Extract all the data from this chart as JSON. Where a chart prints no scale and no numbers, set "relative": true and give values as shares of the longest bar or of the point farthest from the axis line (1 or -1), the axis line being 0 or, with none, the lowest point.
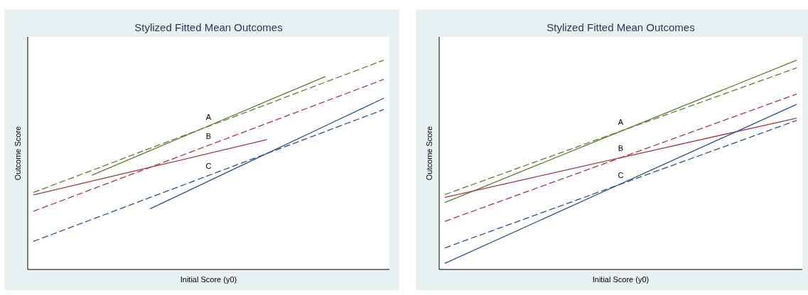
{
  "chart_data": [
    {
      "type": "line",
      "title": "Stylized Fitted Mean Outcomes",
      "xlabel": "Initial Score (y0)",
      "ylabel": "Outcome Score",
      "relative": true,
      "grid": false,
      "marker": "none",
      "categories": [
        null,
        null,
        null,
        null,
        null,
        null,
        null
      ],
      "series": [
        {
          "color": "#5f7f2f",
          "line_style": "dashed",
          "values": [
            0.368,
            0.473,
            0.579,
            0.684,
            0.789,
            0.895,
            1.0
          ]
        },
        {
          "color": "#5f7f2f",
          "line_style": "solid",
          "values": [
            null,
            0.45,
            0.568,
            0.686,
            0.804,
            0.922,
            null
          ]
        },
        {
          "color": "#a33a45",
          "line_style": "dashed",
          "values": [
            0.278,
            0.383,
            0.488,
            0.593,
            0.698,
            0.803,
            0.908
          ]
        },
        {
          "color": "#a33a45",
          "line_style": "solid",
          "values": [
            0.356,
            0.422,
            0.488,
            0.554,
            0.62,
            null,
            null
          ]
        },
        {
          "color": "#2c5387",
          "line_style": "dashed",
          "values": [
            0.134,
            0.239,
            0.344,
            0.449,
            0.554,
            0.659,
            0.764
          ]
        },
        {
          "color": "#2c5387",
          "line_style": "solid",
          "values": [
            null,
            null,
            0.29,
            0.422,
            0.554,
            0.686,
            0.818
          ]
        }
      ],
      "annotations": [
        "A",
        "B",
        "C"
      ]
    },
    {
      "type": "line",
      "title": "Stylized Fitted Mean Outcomes",
      "xlabel": "Initial Score (y0)",
      "ylabel": "Outcome Score",
      "relative": true,
      "grid": false,
      "marker": "none",
      "categories": [
        null,
        null,
        null
      ],
      "series": [
        {
          "color": "#5f7f2f",
          "line_style": "solid",
          "values": [
            0.32,
            0.66,
            1.0
          ]
        },
        {
          "color": "#5f7f2f",
          "line_style": "dashed",
          "values": [
            0.358,
            0.661,
            0.963
          ]
        },
        {
          "color": "#a33a45",
          "line_style": "dashed",
          "values": [
            0.23,
            0.534,
            0.838
          ]
        },
        {
          "color": "#a33a45",
          "line_style": "solid",
          "values": [
            0.344,
            0.534,
            0.723
          ]
        },
        {
          "color": "#2c5387",
          "line_style": "dashed",
          "values": [
            0.103,
            0.408,
            0.712
          ]
        },
        {
          "color": "#2c5387",
          "line_style": "solid",
          "values": [
            0.029,
            0.409,
            0.789
          ]
        }
      ],
      "annotations": [
        "A",
        "B",
        "C"
      ]
    }
  ]
}
